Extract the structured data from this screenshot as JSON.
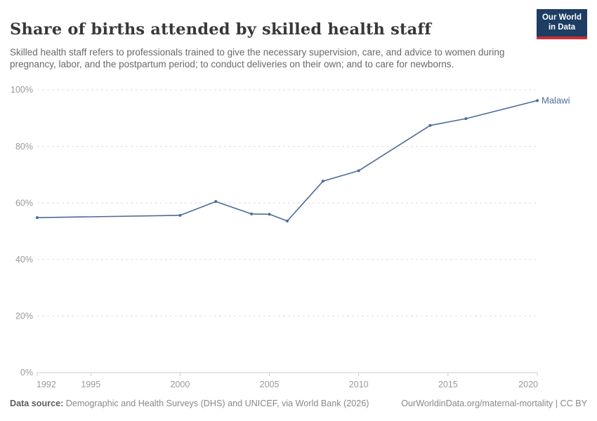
{
  "header": {
    "title": "Share of births attended by skilled health staff",
    "subtitle": "Skilled health staff refers to professionals trained to give the necessary supervision, care, and advice to women during pregnancy, labor, and the postpartum period; to conduct deliveries on their own; and to care for newborns.",
    "logo": {
      "line1": "Our World",
      "line2": "in Data"
    }
  },
  "footer": {
    "datasource_label": "Data source:",
    "datasource_text": " Demographic and Health Surveys (DHS) and UNICEF, via World Bank (2026)",
    "right_text": "OurWorldinData.org/maternal-mortality | CC BY"
  },
  "colors": {
    "line": "#4c6a9c",
    "grid": "#dddddd",
    "axis": "#cccccc",
    "tick_label": "#999999",
    "logo_navy": "#1d3d63",
    "logo_red": "#cd2d37"
  },
  "chart_data": {
    "type": "line",
    "title": "Share of births attended by skilled health staff",
    "entity": "Malawi",
    "xlabel": "",
    "ylabel": "",
    "x_range": [
      1992,
      2020
    ],
    "y_range": [
      0,
      100
    ],
    "x_ticks": [
      1992,
      1995,
      2000,
      2005,
      2010,
      2015,
      2020
    ],
    "y_ticks": [
      0,
      20,
      40,
      60,
      80,
      100
    ],
    "y_tick_suffix": "%",
    "grid": "horizontal-dashed",
    "legend_position": "end-of-line-label",
    "series": [
      {
        "name": "Malawi",
        "color": "#4c6a9c",
        "points": [
          {
            "x": 1992,
            "y": 54.8
          },
          {
            "x": 2000,
            "y": 55.6
          },
          {
            "x": 2002,
            "y": 60.5
          },
          {
            "x": 2004,
            "y": 56.1
          },
          {
            "x": 2005,
            "y": 56.0
          },
          {
            "x": 2006,
            "y": 53.6
          },
          {
            "x": 2008,
            "y": 67.7
          },
          {
            "x": 2010,
            "y": 71.4
          },
          {
            "x": 2014,
            "y": 87.4
          },
          {
            "x": 2016,
            "y": 89.8
          },
          {
            "x": 2020,
            "y": 96.2
          }
        ]
      }
    ]
  }
}
